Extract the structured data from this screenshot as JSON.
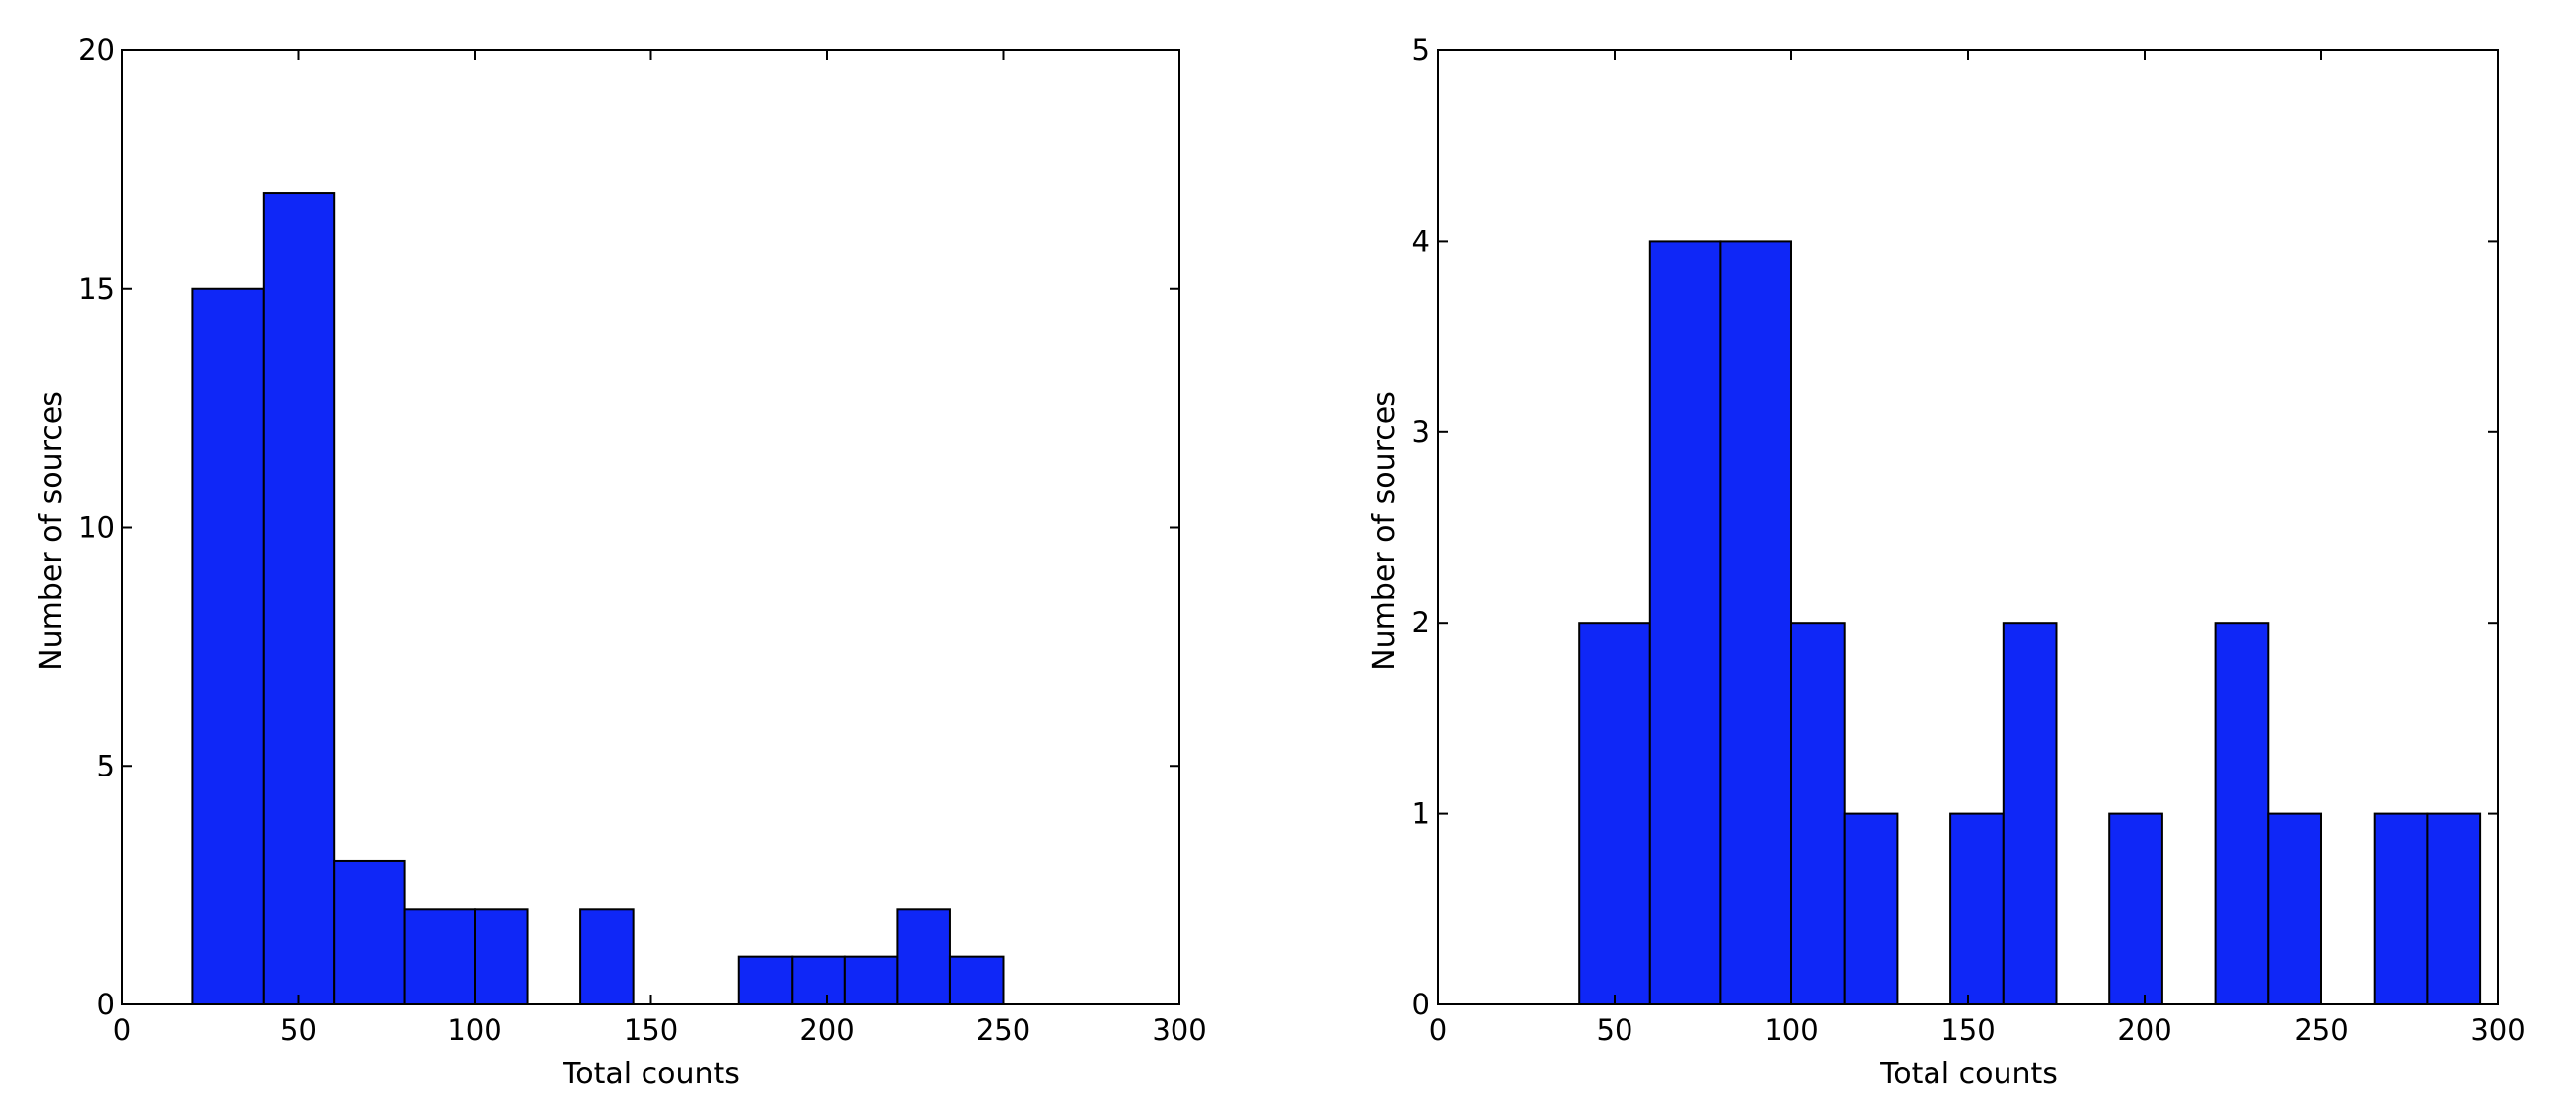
{
  "colors": {
    "bar_fill": "#0f27f7",
    "bar_edge": "#000000",
    "axes": "#000000",
    "background": "#ffffff"
  },
  "chart_data": [
    {
      "type": "bar",
      "title": "",
      "xlabel": "Total counts",
      "ylabel": "Number of sources",
      "xlim": [
        0,
        300
      ],
      "ylim": [
        0,
        20
      ],
      "xticks": [
        0,
        50,
        100,
        150,
        200,
        250,
        300
      ],
      "yticks": [
        0,
        5,
        10,
        15,
        20
      ],
      "grid": false,
      "bins": [
        {
          "x0": 0,
          "x1": 20,
          "count": 0
        },
        {
          "x0": 20,
          "x1": 40,
          "count": 15
        },
        {
          "x0": 40,
          "x1": 60,
          "count": 17
        },
        {
          "x0": 60,
          "x1": 80,
          "count": 3
        },
        {
          "x0": 80,
          "x1": 100,
          "count": 2
        },
        {
          "x0": 100,
          "x1": 115,
          "count": 2
        },
        {
          "x0": 130,
          "x1": 145,
          "count": 2
        },
        {
          "x0": 175,
          "x1": 190,
          "count": 1
        },
        {
          "x0": 190,
          "x1": 205,
          "count": 1
        },
        {
          "x0": 205,
          "x1": 220,
          "count": 1
        },
        {
          "x0": 220,
          "x1": 235,
          "count": 2
        },
        {
          "x0": 235,
          "x1": 250,
          "count": 1
        }
      ]
    },
    {
      "type": "bar",
      "title": "",
      "xlabel": "Total counts",
      "ylabel": "Number of sources",
      "xlim": [
        0,
        300
      ],
      "ylim": [
        0,
        5
      ],
      "xticks": [
        0,
        50,
        100,
        150,
        200,
        250,
        300
      ],
      "yticks": [
        0,
        1,
        2,
        3,
        4,
        5
      ],
      "grid": false,
      "bins": [
        {
          "x0": 0,
          "x1": 20,
          "count": 0
        },
        {
          "x0": 40,
          "x1": 60,
          "count": 2
        },
        {
          "x0": 60,
          "x1": 80,
          "count": 4
        },
        {
          "x0": 80,
          "x1": 100,
          "count": 4
        },
        {
          "x0": 100,
          "x1": 115,
          "count": 2
        },
        {
          "x0": 115,
          "x1": 130,
          "count": 1
        },
        {
          "x0": 145,
          "x1": 160,
          "count": 1
        },
        {
          "x0": 160,
          "x1": 175,
          "count": 2
        },
        {
          "x0": 190,
          "x1": 205,
          "count": 1
        },
        {
          "x0": 220,
          "x1": 235,
          "count": 2
        },
        {
          "x0": 235,
          "x1": 250,
          "count": 1
        },
        {
          "x0": 265,
          "x1": 280,
          "count": 1
        },
        {
          "x0": 280,
          "x1": 295,
          "count": 1
        }
      ]
    }
  ]
}
